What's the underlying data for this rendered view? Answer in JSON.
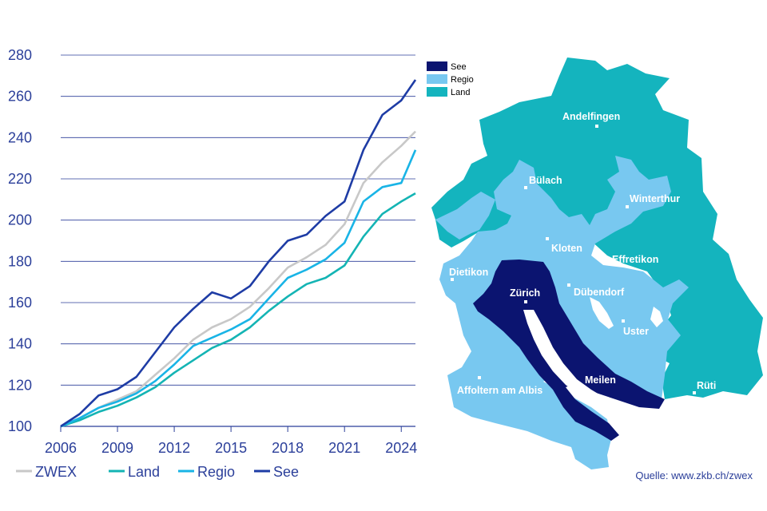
{
  "chart_data": {
    "type": "line",
    "ylim": [
      100,
      280
    ],
    "yticks": [
      "100",
      "120",
      "140",
      "160",
      "180",
      "200",
      "220",
      "240",
      "260",
      "280"
    ],
    "xlim": [
      2006,
      2024.75
    ],
    "xticks": [
      "2006",
      "2009",
      "2012",
      "2015",
      "2018",
      "2021",
      "2024"
    ],
    "grid": "horizontal",
    "legend_position": "bottom",
    "series": [
      {
        "name": "ZWEX",
        "color": "#c8c8c8",
        "x": [
          2006,
          2007,
          2008,
          2009,
          2010,
          2011,
          2012,
          2013,
          2014,
          2015,
          2016,
          2017,
          2018,
          2019,
          2020,
          2021,
          2022,
          2023,
          2024,
          2024.75
        ],
        "y": [
          100,
          104,
          109,
          113,
          117,
          125,
          133,
          142,
          148,
          152,
          158,
          167,
          177,
          182,
          188,
          198,
          218,
          228,
          236,
          243
        ]
      },
      {
        "name": "Land",
        "color": "#14b4b4",
        "x": [
          2006,
          2007,
          2008,
          2009,
          2010,
          2011,
          2012,
          2013,
          2014,
          2015,
          2016,
          2017,
          2018,
          2019,
          2020,
          2021,
          2022,
          2023,
          2024,
          2024.75
        ],
        "y": [
          100,
          103,
          107,
          110,
          114,
          119,
          126,
          132,
          138,
          142,
          148,
          156,
          163,
          169,
          172,
          178,
          192,
          203,
          209,
          213
        ]
      },
      {
        "name": "Regio",
        "color": "#19b4e6",
        "x": [
          2006,
          2007,
          2008,
          2009,
          2010,
          2011,
          2012,
          2013,
          2014,
          2015,
          2016,
          2017,
          2018,
          2019,
          2020,
          2021,
          2022,
          2023,
          2024,
          2024.75
        ],
        "y": [
          100,
          104,
          109,
          112,
          116,
          122,
          130,
          139,
          143,
          147,
          152,
          162,
          172,
          176,
          181,
          189,
          209,
          216,
          218,
          234
        ]
      },
      {
        "name": "See",
        "color": "#1e3ca5",
        "x": [
          2006,
          2007,
          2008,
          2009,
          2010,
          2011,
          2012,
          2013,
          2014,
          2015,
          2016,
          2017,
          2018,
          2019,
          2020,
          2021,
          2022,
          2023,
          2024,
          2024.75
        ],
        "y": [
          100,
          106,
          115,
          118,
          124,
          136,
          148,
          157,
          165,
          162,
          168,
          180,
          190,
          193,
          202,
          209,
          234,
          251,
          258,
          268
        ]
      }
    ]
  },
  "map_legend": [
    {
      "label": "See",
      "color": "#0b1470"
    },
    {
      "label": "Regio",
      "color": "#78c8f0"
    },
    {
      "label": "Land",
      "color": "#14b4be"
    }
  ],
  "map_places": [
    "Andelfingen",
    "Bülach",
    "Winterthur",
    "Kloten",
    "Effretikon",
    "Dietikon",
    "Zürich",
    "Dübendorf",
    "Uster",
    "Meilen",
    "Affoltern am Albis",
    "Rüti"
  ],
  "source": "Quelle: www.zkb.ch/zwex"
}
